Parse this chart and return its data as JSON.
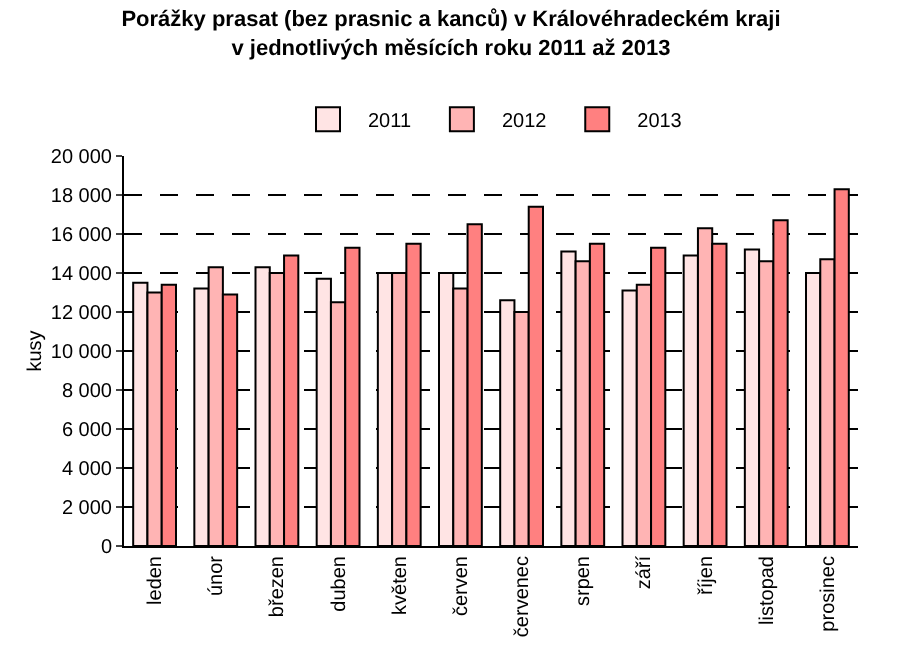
{
  "chart_data": {
    "type": "bar",
    "title": "Porážky prasat (bez prasnic a kanců) v Královéhradeckém kraji\nv jednotlivých měsících roku 2011 až 2013",
    "ylabel": "kusy",
    "categories": [
      "leden",
      "únor",
      "březen",
      "duben",
      "květen",
      "červen",
      "červenec",
      "srpen",
      "září",
      "říjen",
      "listopad",
      "prosinec"
    ],
    "series": [
      {
        "name": "2011",
        "color": "#ffe4e4",
        "values": [
          13500,
          13200,
          14300,
          13700,
          14000,
          14000,
          12600,
          15100,
          13100,
          14900,
          15200,
          14000
        ]
      },
      {
        "name": "2012",
        "color": "#ffb4b4",
        "values": [
          13000,
          14300,
          14000,
          12500,
          14000,
          13200,
          12000,
          14600,
          13400,
          16300,
          14600,
          14700
        ]
      },
      {
        "name": "2013",
        "color": "#ff8080",
        "values": [
          13400,
          12900,
          14900,
          15300,
          15500,
          16500,
          17400,
          15500,
          15300,
          15500,
          16700,
          18300
        ]
      }
    ],
    "ylim": [
      0,
      20000
    ],
    "yticks": [
      0,
      {
        "value": 2000,
        "label": "2 000"
      },
      {
        "value": 4000,
        "label": "4 000"
      },
      {
        "value": 6000,
        "label": "6 000"
      },
      {
        "value": 8000,
        "label": "8 000"
      },
      {
        "value": 10000,
        "label": "10 000"
      },
      {
        "value": 12000,
        "label": "12 000"
      },
      {
        "value": 14000,
        "label": "14 000"
      },
      {
        "value": 16000,
        "label": "16 000"
      },
      {
        "value": 18000,
        "label": "18 000"
      },
      {
        "value": 20000,
        "label": "20 000"
      }
    ],
    "grid": "y",
    "legend": "top"
  }
}
